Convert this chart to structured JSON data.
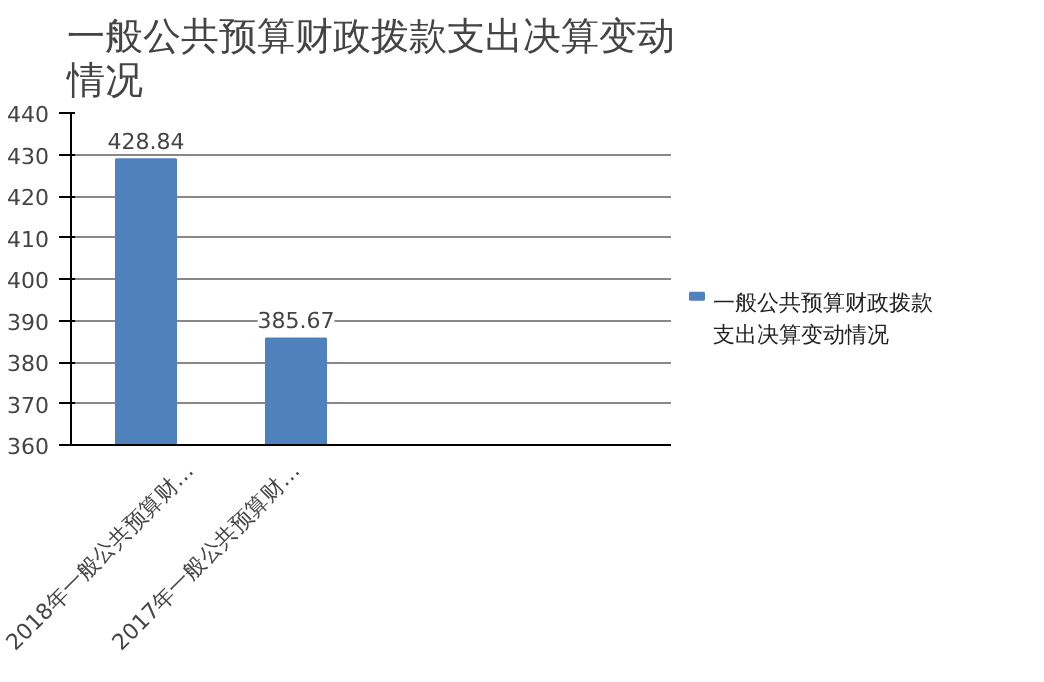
{
  "chart_data": {
    "type": "bar",
    "title": "一般公共预算财政拨款支出决算变动情况",
    "categories": [
      "2018年一般公共预算财…",
      "2017年一般公共预算财…",
      null,
      null
    ],
    "series": [
      {
        "name": "一般公共预算财政拨款支出决算变动情况",
        "color": "#4f81bd",
        "values": [
          428.84,
          385.67,
          null,
          null
        ]
      }
    ],
    "ylim": [
      360,
      440
    ],
    "yticks": [
      360,
      370,
      380,
      390,
      400,
      410,
      420,
      430,
      440
    ],
    "grid": "y",
    "legend": "right",
    "data_labels": true
  }
}
